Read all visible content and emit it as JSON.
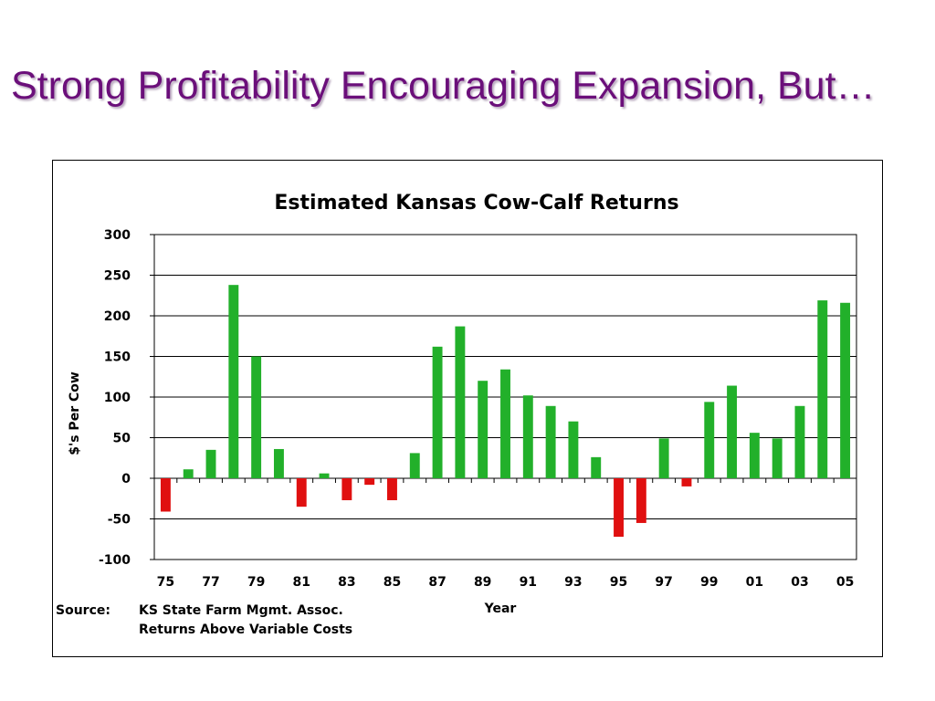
{
  "slide": {
    "title": "Strong Profitability Encouraging Expansion, But…"
  },
  "colors": {
    "title": "#6b0f7a",
    "positive_bar": "#22b02a",
    "negative_bar": "#e01010",
    "gridline": "#000000"
  },
  "chart_data": {
    "type": "bar",
    "title": "Estimated Kansas Cow-Calf Returns",
    "xlabel": "Year",
    "ylabel": "$'s Per Cow",
    "ylim": [
      -100,
      300
    ],
    "yticks": [
      -100,
      -50,
      0,
      50,
      100,
      150,
      200,
      250,
      300
    ],
    "grid": true,
    "categories": [
      "75",
      "76",
      "77",
      "78",
      "79",
      "80",
      "81",
      "82",
      "83",
      "84",
      "85",
      "86",
      "87",
      "88",
      "89",
      "90",
      "91",
      "92",
      "93",
      "94",
      "95",
      "96",
      "97",
      "98",
      "99",
      "00",
      "01",
      "02",
      "03",
      "04",
      "05"
    ],
    "xtick_labels": [
      "75",
      "77",
      "79",
      "81",
      "83",
      "85",
      "87",
      "89",
      "91",
      "93",
      "95",
      "97",
      "99",
      "01",
      "03",
      "05"
    ],
    "values": [
      -41,
      11,
      35,
      238,
      150,
      36,
      -35,
      6,
      -27,
      -8,
      -27,
      31,
      162,
      187,
      120,
      134,
      102,
      89,
      70,
      26,
      -72,
      -55,
      49,
      -10,
      94,
      114,
      56,
      49,
      89,
      219,
      216
    ]
  },
  "source": {
    "label": "Source:",
    "line1": "KS State Farm Mgmt. Assoc.",
    "line2": "Returns Above Variable Costs"
  }
}
